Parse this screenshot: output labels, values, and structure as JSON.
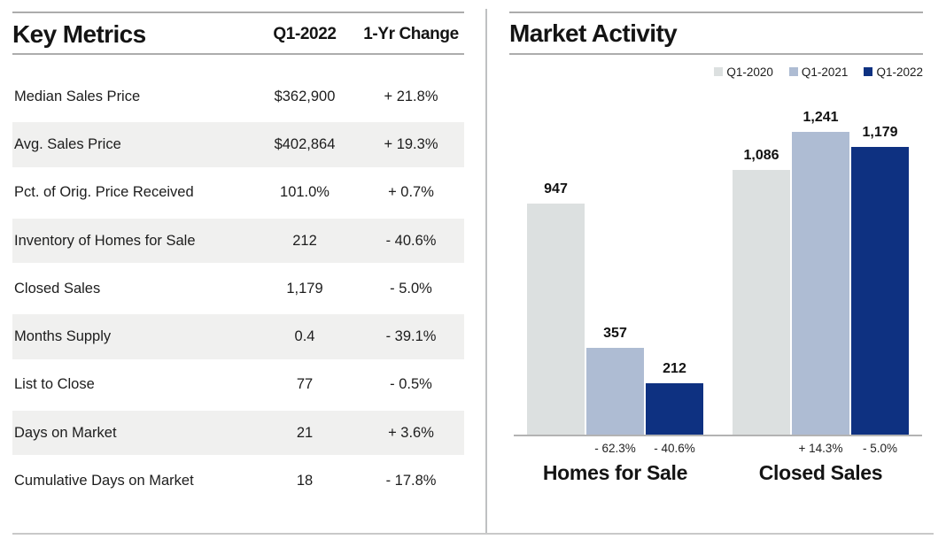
{
  "key_metrics": {
    "title": "Key Metrics",
    "columns": [
      "Q1-2022",
      "1-Yr Change"
    ],
    "rows": [
      {
        "label": "Median Sales Price",
        "value": "$362,900",
        "change": "+ 21.8%"
      },
      {
        "label": "Avg. Sales Price",
        "value": "$402,864",
        "change": "+ 19.3%"
      },
      {
        "label": "Pct. of Orig. Price Received",
        "value": "101.0%",
        "change": "+ 0.7%"
      },
      {
        "label": "Inventory of Homes for Sale",
        "value": "212",
        "change": "- 40.6%"
      },
      {
        "label": "Closed Sales",
        "value": "1,179",
        "change": "- 5.0%"
      },
      {
        "label": "Months Supply",
        "value": "0.4",
        "change": "- 39.1%"
      },
      {
        "label": "List to Close",
        "value": "77",
        "change": "- 0.5%"
      },
      {
        "label": "Days on Market",
        "value": "21",
        "change": "+ 3.6%"
      },
      {
        "label": "Cumulative Days on Market",
        "value": "18",
        "change": "- 17.8%"
      }
    ]
  },
  "market_activity": {
    "title": "Market Activity"
  },
  "chart_data": {
    "type": "bar",
    "title": "Market Activity",
    "categories": [
      "Homes for Sale",
      "Closed Sales"
    ],
    "series": [
      {
        "name": "Q1-2020",
        "color": "#dce0e0",
        "values": [
          947,
          1086
        ],
        "value_labels": [
          "947",
          "1,086"
        ],
        "pct_labels": [
          null,
          null
        ]
      },
      {
        "name": "Q1-2021",
        "color": "#aebcd3",
        "values": [
          357,
          1241
        ],
        "value_labels": [
          "357",
          "1,241"
        ],
        "pct_labels": [
          "- 62.3%",
          "+ 14.3%"
        ]
      },
      {
        "name": "Q1-2022",
        "color": "#0e3181",
        "values": [
          212,
          1179
        ],
        "value_labels": [
          "212",
          "1,179"
        ],
        "pct_labels": [
          "- 40.6%",
          "- 5.0%"
        ]
      }
    ],
    "ylim": [
      0,
      1300
    ],
    "grid": false,
    "legend_position": "top-right",
    "xlabel": "",
    "ylabel": ""
  },
  "colors": {
    "stripe": "#f0f0ef",
    "rule": "#acacac",
    "axis": "#b3b3b3",
    "divider": "#bfc1c2"
  }
}
